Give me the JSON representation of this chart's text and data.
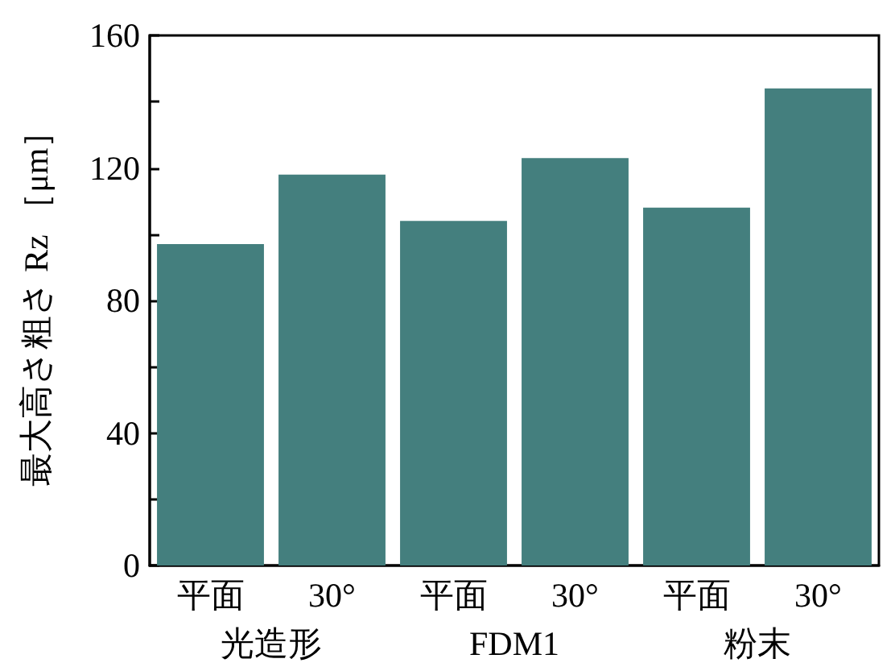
{
  "chart_data": {
    "type": "bar",
    "ylabel": "最大高さ粗さ Rz ［μm］",
    "categories": [
      "平面",
      "30°",
      "平面",
      "30°",
      "平面",
      "30°"
    ],
    "values": [
      97,
      118,
      104,
      123,
      108,
      144
    ],
    "color": "#447f7e",
    "annotations": [
      "光造形",
      "FDM1",
      "粉末"
    ],
    "ylim": [
      0,
      160
    ],
    "yticks": [
      0,
      {
        "value": 20,
        "label": null
      },
      40,
      {
        "value": 60,
        "label": null
      },
      80,
      {
        "value": 100,
        "label": null
      },
      120,
      {
        "value": 140,
        "label": null
      },
      160
    ],
    "grid": false
  }
}
